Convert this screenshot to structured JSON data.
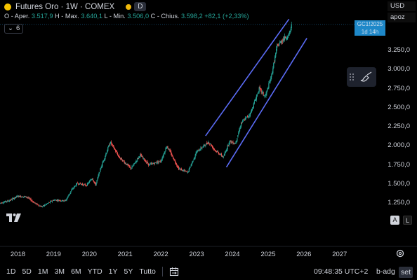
{
  "header": {
    "title": "Futures Oro · 1W · COMEX",
    "badge": "D",
    "ohlc": {
      "open_label": "O - Aper.",
      "open": "3.517,9",
      "high_label": "H - Max.",
      "high": "3.640,1",
      "low_label": "L - Min.",
      "low": "3.506,0",
      "close_label": "C - Chius.",
      "close": "3.598,2",
      "change": "+82,1 (+2,33%)"
    },
    "indicator_count": "6"
  },
  "right_panel": {
    "currency": "USD",
    "mode": "apoz",
    "ticker_tag": "GC1!2025",
    "countdown_tag": "1d 14h"
  },
  "y_axis": [
    "3.250,0",
    "3.000,0",
    "2.750,0",
    "2.500,0",
    "2.250,0",
    "2.000,0",
    "1.750,0",
    "1.500,0",
    "1.250,0"
  ],
  "x_axis": [
    "2018",
    "2019",
    "2020",
    "2021",
    "2022",
    "2023",
    "2024",
    "2025",
    "2026",
    "2027"
  ],
  "controls": {
    "auto_button": "A",
    "log_button": "L"
  },
  "bottom_bar": {
    "timeframes": [
      "1D",
      "5D",
      "1M",
      "3M",
      "6M",
      "YTD",
      "1Y",
      "5Y",
      "Tutto"
    ],
    "time": "09:48:35 UTC+2",
    "adjust": "b-adg",
    "settings": "set"
  },
  "colors": {
    "up": "#26a69a",
    "down": "#ef5350",
    "channel": "#5b6cf6",
    "background": "#000000"
  },
  "chart_data": {
    "type": "candlestick",
    "symbol": "Futures Oro",
    "interval": "1W",
    "exchange": "COMEX",
    "ylim": [
      1100,
      3700
    ],
    "x_range": [
      "2017-07",
      "2027-06"
    ],
    "series": [
      {
        "x": "2017-07",
        "y": 1250
      },
      {
        "x": "2017-10",
        "y": 1280
      },
      {
        "x": "2018-01",
        "y": 1340
      },
      {
        "x": "2018-04",
        "y": 1330
      },
      {
        "x": "2018-07",
        "y": 1240
      },
      {
        "x": "2018-09",
        "y": 1200
      },
      {
        "x": "2019-01",
        "y": 1290
      },
      {
        "x": "2019-05",
        "y": 1280
      },
      {
        "x": "2019-07",
        "y": 1420
      },
      {
        "x": "2019-09",
        "y": 1510
      },
      {
        "x": "2019-12",
        "y": 1480
      },
      {
        "x": "2020-02",
        "y": 1580
      },
      {
        "x": "2020-03",
        "y": 1480
      },
      {
        "x": "2020-05",
        "y": 1730
      },
      {
        "x": "2020-08",
        "y": 2050
      },
      {
        "x": "2020-11",
        "y": 1850
      },
      {
        "x": "2021-03",
        "y": 1700
      },
      {
        "x": "2021-06",
        "y": 1880
      },
      {
        "x": "2021-09",
        "y": 1750
      },
      {
        "x": "2022-01",
        "y": 1800
      },
      {
        "x": "2022-03",
        "y": 2000
      },
      {
        "x": "2022-07",
        "y": 1700
      },
      {
        "x": "2022-10",
        "y": 1650
      },
      {
        "x": "2023-01",
        "y": 1920
      },
      {
        "x": "2023-05",
        "y": 2050
      },
      {
        "x": "2023-07",
        "y": 1950
      },
      {
        "x": "2023-10",
        "y": 1850
      },
      {
        "x": "2023-12",
        "y": 2060
      },
      {
        "x": "2024-02",
        "y": 2030
      },
      {
        "x": "2024-04",
        "y": 2300
      },
      {
        "x": "2024-07",
        "y": 2420
      },
      {
        "x": "2024-10",
        "y": 2750
      },
      {
        "x": "2024-12",
        "y": 2640
      },
      {
        "x": "2025-02",
        "y": 2900
      },
      {
        "x": "2025-04",
        "y": 3300
      },
      {
        "x": "2025-06",
        "y": 3400
      },
      {
        "x": "2025-08",
        "y": 3450
      },
      {
        "x": "2025-09",
        "y": 3598
      }
    ],
    "channel_lines": [
      {
        "from": {
          "x": "2023-04",
          "y": 2130
        },
        "to": {
          "x": "2025-08",
          "y": 3660
        }
      },
      {
        "from": {
          "x": "2023-11",
          "y": 1720
        },
        "to": {
          "x": "2026-02",
          "y": 3410
        }
      }
    ]
  }
}
